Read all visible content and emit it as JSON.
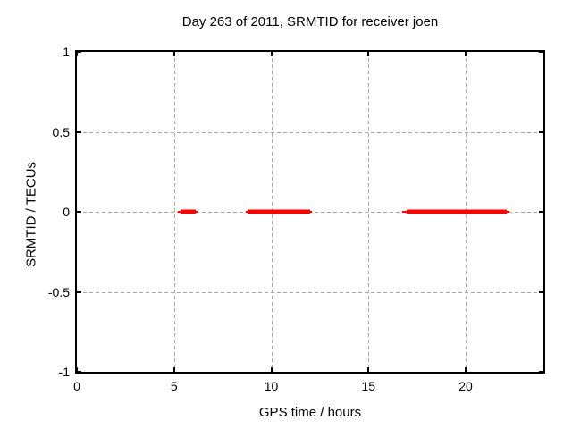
{
  "chart_data": {
    "type": "line",
    "title": "Day 263 of 2011, SRMTID for receiver joen",
    "xlabel": "GPS time / hours",
    "ylabel": "SRMTID / TECUs",
    "xlim": [
      0,
      24
    ],
    "ylim": [
      -1,
      1
    ],
    "grid": true,
    "legend": "none",
    "x_ticks": [
      {
        "v": 0,
        "label": "0"
      },
      {
        "v": 5,
        "label": "5"
      },
      {
        "v": 10,
        "label": "10"
      },
      {
        "v": 15,
        "label": "15"
      },
      {
        "v": 20,
        "label": "20"
      }
    ],
    "y_ticks": [
      {
        "v": 1,
        "label": "1"
      },
      {
        "v": 0.5,
        "label": "0.5"
      },
      {
        "v": 0,
        "label": "0"
      },
      {
        "v": -0.5,
        "label": "-0.5"
      },
      {
        "v": -1,
        "label": "-1"
      }
    ],
    "series": [
      {
        "name": "SRMTID",
        "style": "thick horizontal segments at y=0",
        "segments": [
          {
            "y": 0,
            "x_thick": [
              5.35,
              6.1
            ],
            "x_thin": [
              5.2,
              6.2
            ]
          },
          {
            "y": 0,
            "x_thick": [
              8.8,
              12.0
            ],
            "x_thin": [
              8.7,
              12.1
            ]
          },
          {
            "y": 0,
            "x_thick": [
              16.95,
              22.1
            ],
            "x_thin": [
              16.75,
              22.25
            ]
          }
        ]
      }
    ],
    "colors": {
      "line": "#ff0000",
      "grid": "#a9a9a9",
      "axis": "#000000",
      "background": "#ffffff"
    }
  }
}
